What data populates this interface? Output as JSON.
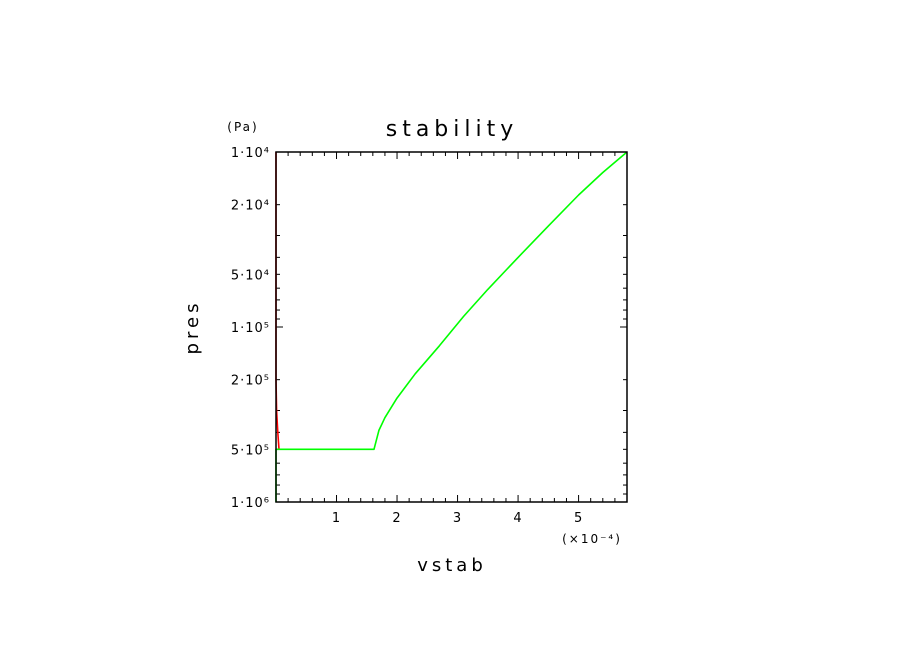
{
  "chart_data": {
    "type": "line",
    "title": "stability",
    "xlabel": "vstab",
    "ylabel": "pres",
    "y_unit": "(Pa)",
    "x_multiplier": "(×10⁻⁴)",
    "x_ticks": [
      "1",
      "2",
      "3",
      "4",
      "5"
    ],
    "y_ticks": [
      "1·10⁴",
      "2·10⁴",
      "5·10⁴",
      "1·10⁵",
      "2·10⁵",
      "5·10⁵",
      "1·10⁶"
    ],
    "x_tick_values": [
      1,
      2,
      3,
      4,
      5
    ],
    "y_tick_values": [
      10000,
      20000,
      50000,
      100000,
      200000,
      500000,
      1000000
    ],
    "xlim": [
      0,
      5.8
    ],
    "ylim": [
      10000,
      1000000
    ],
    "y_scale": "log",
    "y_inverted": true,
    "grid": false,
    "series": [
      {
        "color": "#ff0000",
        "points": [
          [
            0,
            10000
          ],
          [
            0,
            100000
          ],
          [
            0,
            200000
          ],
          [
            0.01,
            300000
          ],
          [
            0.03,
            400000
          ],
          [
            0.05,
            500000
          ]
        ]
      },
      {
        "color": "#00ff00",
        "points": [
          [
            0,
            1000000
          ],
          [
            0,
            500000
          ],
          [
            1.62,
            500000
          ],
          [
            1.7,
            390000
          ],
          [
            1.8,
            330000
          ],
          [
            2.0,
            255000
          ],
          [
            2.3,
            185000
          ],
          [
            2.7,
            128000
          ],
          [
            3.1,
            87000
          ],
          [
            3.5,
            61000
          ],
          [
            4.0,
            40000
          ],
          [
            4.5,
            26500
          ],
          [
            5.0,
            17600
          ],
          [
            5.4,
            13100
          ],
          [
            5.8,
            10000
          ]
        ]
      }
    ]
  }
}
